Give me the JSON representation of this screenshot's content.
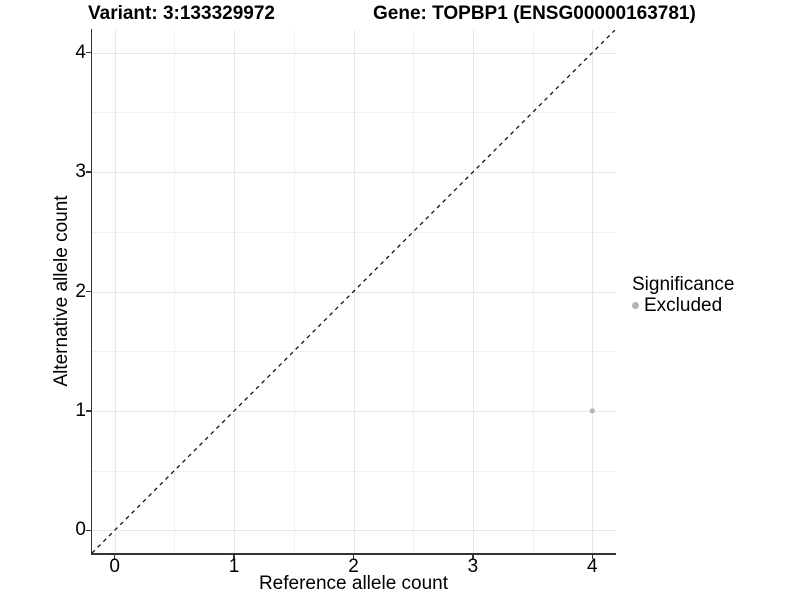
{
  "header": {
    "variant_title": "Variant: 3:133329972",
    "gene_title": "Gene: TOPBP1 (ENSG00000163781)"
  },
  "chart_data": {
    "type": "scatter",
    "xlabel": "Reference allele count",
    "ylabel": "Alternative allele count",
    "xlim": [
      -0.19,
      4.19
    ],
    "ylim": [
      -0.19,
      4.19
    ],
    "xticks": [
      0,
      1,
      2,
      3,
      4
    ],
    "yticks": [
      0,
      1,
      2,
      3,
      4
    ],
    "x_minor_ticks": [
      0.5,
      1.5,
      2.5,
      3.5
    ],
    "y_minor_ticks": [
      0.5,
      1.5,
      2.5,
      3.5
    ],
    "grid": "on",
    "reference_line": {
      "kind": "identity y=x",
      "style": "dashed",
      "color": "#000000"
    },
    "series": [
      {
        "name": "Excluded",
        "color": "#b4b4b4",
        "points": [
          {
            "x": 4,
            "y": 1
          }
        ]
      }
    ],
    "legend": {
      "title": "Significance",
      "position": "right",
      "entries": [
        {
          "label": "Excluded",
          "color": "#b4b4b4"
        }
      ]
    }
  }
}
